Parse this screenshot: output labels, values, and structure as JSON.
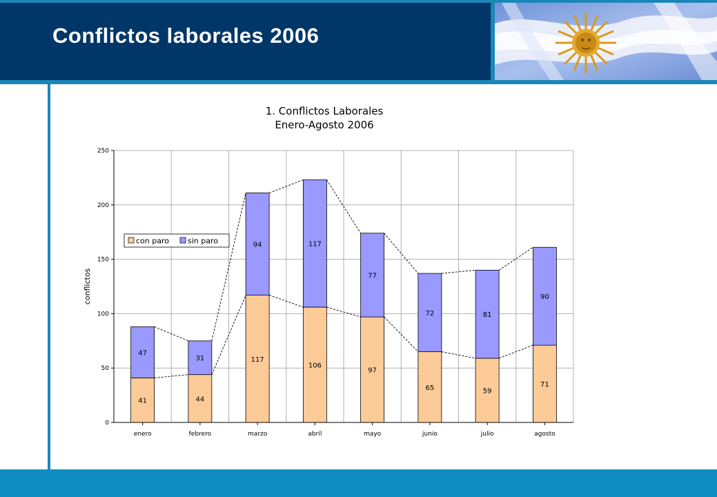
{
  "slide": {
    "title": "Conflictos laborales 2006"
  },
  "colors": {
    "header_bg": "#003768",
    "accent": "#1b86b8",
    "con_paro": "#fdcb98",
    "sin_paro": "#9999ff"
  },
  "chart_data": {
    "type": "bar",
    "stacked": true,
    "title": "1. Conflictos Laborales",
    "subtitle": "Enero-Agosto 2006",
    "xlabel": "",
    "ylabel": "conflictos",
    "ylim": [
      0,
      250
    ],
    "yticks": [
      "0",
      "50",
      "100",
      "150",
      "200",
      "250"
    ],
    "grid": true,
    "legend_position": "upper-left",
    "categories": [
      "enero",
      "febrero",
      "marzo",
      "abril",
      "mayo",
      "junio",
      "julio",
      "agosto"
    ],
    "series": [
      {
        "name": "con paro",
        "values": [
          41,
          44,
          117,
          106,
          97,
          65,
          59,
          71
        ]
      },
      {
        "name": "sin paro",
        "values": [
          47,
          31,
          94,
          117,
          77,
          72,
          81,
          90
        ]
      }
    ],
    "series_lines": "dashed"
  }
}
